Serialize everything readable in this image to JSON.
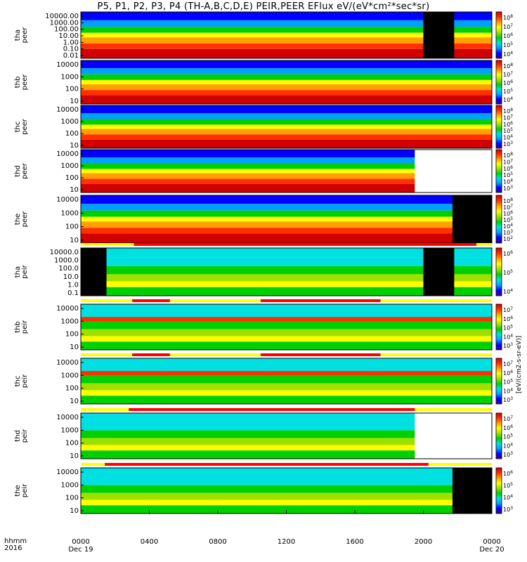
{
  "title": "P5, P1, P2, P3, P4 (TH-A,B,C,D,E) PEIR,PEER EFlux eV/(eV*cm²*sec*sr)",
  "colorbar_units": "[eV/(cm2-s-sr-eV)]",
  "x_axis": {
    "row_label": "hhmm",
    "year_label": "2016",
    "ticks": [
      "0000",
      "0400",
      "0800",
      "1200",
      "1600",
      "2000",
      "0000"
    ],
    "date_labels": [
      "Dec 19",
      "",
      "",
      "",
      "",
      "",
      "Dec 20"
    ]
  },
  "chart_data": [
    {
      "type": "heatmap",
      "probe": "tha",
      "ylabel": [
        "tha",
        "peer"
      ],
      "yticks": [
        "10000.00",
        "1000.00",
        "100.00",
        "10.00",
        "1.00",
        "0.10",
        "0.01"
      ],
      "cbar_ticks": [
        "10^8",
        "10^7",
        "10^6",
        "10^5",
        "10^4"
      ],
      "bar": []
    },
    {
      "type": "heatmap",
      "probe": "thb",
      "ylabel": [
        "thb",
        "peer"
      ],
      "yticks": [
        "10000",
        "1000",
        "100",
        "10"
      ],
      "cbar_ticks": [
        "10^8",
        "10^7",
        "10^6",
        "10^5",
        "10^4"
      ],
      "bar": []
    },
    {
      "type": "heatmap",
      "probe": "thc",
      "ylabel": [
        "thc",
        "peer"
      ],
      "yticks": [
        "10000",
        "1000",
        "100",
        "10"
      ],
      "cbar_ticks": [
        "10^8",
        "10^7",
        "10^6",
        "10^5",
        "10^4",
        "10^3"
      ],
      "bar": []
    },
    {
      "type": "heatmap",
      "probe": "thd",
      "ylabel": [
        "thd",
        "peer"
      ],
      "yticks": [
        "10000",
        "1000",
        "100",
        "10"
      ],
      "cbar_ticks": [
        "10^8",
        "10^7",
        "10^6",
        "10^5",
        "10^4",
        "10^3"
      ],
      "bar": []
    },
    {
      "type": "heatmap",
      "probe": "the",
      "ylabel": [
        "the",
        "peer"
      ],
      "yticks": [
        "10000",
        "1000",
        "100",
        "10"
      ],
      "cbar_ticks": [
        "10^8",
        "10^7",
        "10^6",
        "10^5",
        "10^4",
        "10^3",
        "10^2"
      ],
      "bar": []
    },
    {
      "type": "heatmap",
      "probe": "tha",
      "ylabel": [
        "tha",
        "peir"
      ],
      "yticks": [
        "10000.0",
        "1000.0",
        "100.0",
        "10.0",
        "1.0",
        "0.1"
      ],
      "cbar_ticks": [
        "10^6",
        "10^5",
        "10^4"
      ],
      "bar": [
        [
          3.1,
          23.1
        ]
      ]
    },
    {
      "type": "heatmap",
      "probe": "thb",
      "ylabel": [
        "thb",
        "peir"
      ],
      "yticks": [
        "10000",
        "1000",
        "100",
        "10"
      ],
      "cbar_ticks": [
        "10^7",
        "10^6",
        "10^5",
        "10^4",
        "10^3"
      ],
      "bar": [
        [
          3.0,
          5.2
        ],
        [
          10.5,
          17.5
        ]
      ]
    },
    {
      "type": "heatmap",
      "probe": "thc",
      "ylabel": [
        "thc",
        "peir"
      ],
      "yticks": [
        "10000",
        "1000",
        "100",
        "10"
      ],
      "cbar_ticks": [
        "10^7",
        "10^6",
        "10^5",
        "10^4",
        "10^3"
      ],
      "bar": [
        [
          3.0,
          5.2
        ],
        [
          10.5,
          17.5
        ]
      ]
    },
    {
      "type": "heatmap",
      "probe": "thd",
      "ylabel": [
        "thd",
        "peir"
      ],
      "yticks": [
        "10000",
        "1000",
        "100",
        "10"
      ],
      "cbar_ticks": [
        "10^7",
        "10^6",
        "10^5",
        "10^4",
        "10^3"
      ],
      "bar": [
        [
          2.8,
          19.5
        ]
      ]
    },
    {
      "type": "heatmap",
      "probe": "the",
      "ylabel": [
        "the",
        "peir"
      ],
      "yticks": [
        "10000",
        "1000",
        "100",
        "10"
      ],
      "cbar_ticks": [
        "10^6",
        "10^5",
        "10^4",
        "10^3"
      ],
      "bar": [
        [
          1.4,
          20.3
        ]
      ]
    }
  ],
  "colors": {
    "colormap": [
      "#3a00a0",
      "#0000ff",
      "#00a0ff",
      "#00e0e0",
      "#00d000",
      "#a0e000",
      "#ffff00",
      "#ffa000",
      "#ff3000",
      "#d00000"
    ],
    "bar_red": "#ff0000",
    "bar_yellow": "#ffff00",
    "no_data": "#000000"
  }
}
